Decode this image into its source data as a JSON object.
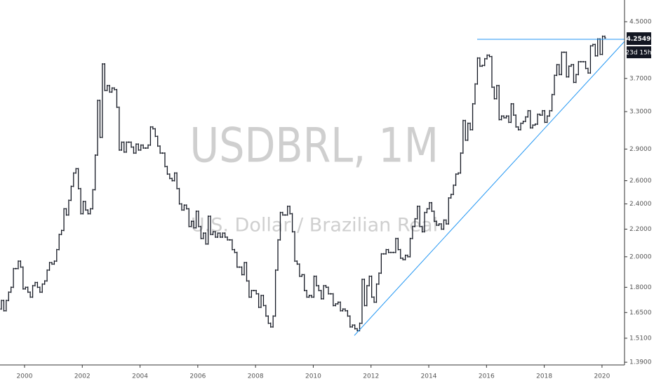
{
  "chart_data": {
    "type": "ohlc",
    "title": "USDBRL, 1M",
    "subtitle": "U.S. Dollar / Brazilian Real",
    "countdown": "23d 15h",
    "log_scale": true,
    "color": "#131722",
    "series": [
      {
        "name": "USDBRL",
        "color": "#131722",
        "open": [
          1.67,
          1.72,
          1.66,
          1.72,
          1.77,
          1.8,
          1.92,
          1.92,
          1.97,
          1.93,
          1.79,
          1.8,
          1.77,
          1.74,
          1.81,
          1.83,
          1.8,
          1.77,
          1.82,
          1.84,
          1.91,
          1.96,
          1.95,
          1.97,
          2.05,
          2.16,
          2.19,
          2.36,
          2.31,
          2.43,
          2.55,
          2.67,
          2.71,
          2.53,
          2.32,
          2.42,
          2.35,
          2.32,
          2.36,
          2.52,
          2.84,
          3.43,
          3.02,
          3.89,
          3.55,
          3.61,
          3.53,
          3.58,
          3.56,
          3.35,
          2.89,
          2.97,
          2.87,
          2.97,
          2.97,
          2.92,
          2.86,
          2.95,
          2.89,
          2.94,
          2.91,
          2.91,
          2.94,
          3.13,
          3.11,
          3.03,
          2.93,
          2.86,
          2.86,
          2.73,
          2.66,
          2.62,
          2.6,
          2.67,
          2.53,
          2.4,
          2.35,
          2.39,
          2.36,
          2.22,
          2.26,
          2.21,
          2.34,
          2.22,
          2.13,
          2.17,
          2.09,
          2.3,
          2.16,
          2.18,
          2.14,
          2.17,
          2.14,
          2.17,
          2.14,
          2.12,
          2.12,
          2.05,
          2.03,
          1.93,
          1.93,
          1.88,
          1.96,
          1.84,
          1.74,
          1.78,
          1.78,
          1.76,
          1.68,
          1.75,
          1.69,
          1.63,
          1.59,
          1.57,
          1.63,
          1.91,
          2.12,
          2.33,
          2.31,
          2.31,
          2.38,
          2.32,
          2.18,
          1.97,
          1.95,
          1.87,
          1.88,
          1.78,
          1.74,
          1.75,
          1.74,
          1.87,
          1.81,
          1.78,
          1.73,
          1.81,
          1.8,
          1.76,
          1.76,
          1.69,
          1.7,
          1.71,
          1.66,
          1.67,
          1.66,
          1.63,
          1.57,
          1.58,
          1.56,
          1.55,
          1.59,
          1.85,
          1.69,
          1.81,
          1.87,
          1.74,
          1.71,
          1.82,
          1.89,
          2.02,
          2.02,
          2.05,
          2.03,
          2.03,
          2.03,
          2.13,
          2.05,
          1.99,
          1.98,
          2.01,
          2.0,
          2.13,
          2.22,
          2.28,
          2.38,
          2.22,
          2.18,
          2.33,
          2.36,
          2.41,
          2.34,
          2.26,
          2.23,
          2.24,
          2.2,
          2.27,
          2.24,
          2.45,
          2.48,
          2.56,
          2.66,
          2.67,
          2.86,
          3.2,
          2.99,
          3.17,
          3.1,
          3.39,
          3.63,
          3.97,
          3.86,
          3.87,
          3.96,
          4.01,
          3.99,
          3.59,
          3.45,
          3.61,
          3.21,
          3.25,
          3.23,
          3.25,
          3.18,
          3.39,
          3.26,
          3.13,
          3.1,
          3.17,
          3.19,
          3.24,
          3.31,
          3.12,
          3.15,
          3.16,
          3.27,
          3.26,
          3.31,
          3.18,
          3.25,
          3.31,
          3.5,
          3.74,
          3.88,
          3.75,
          4.05,
          4.05,
          3.72,
          3.86,
          3.88,
          3.65,
          3.75,
          3.92,
          3.92,
          3.92,
          3.83,
          3.77,
          4.14,
          4.16,
          4.0,
          4.24,
          4.02,
          4.28
        ],
        "close": [
          1.72,
          1.66,
          1.72,
          1.77,
          1.8,
          1.92,
          1.92,
          1.97,
          1.93,
          1.79,
          1.8,
          1.77,
          1.74,
          1.81,
          1.83,
          1.8,
          1.77,
          1.82,
          1.84,
          1.91,
          1.96,
          1.95,
          1.97,
          2.05,
          2.16,
          2.19,
          2.36,
          2.31,
          2.43,
          2.55,
          2.67,
          2.71,
          2.53,
          2.32,
          2.42,
          2.35,
          2.32,
          2.36,
          2.52,
          2.84,
          3.43,
          3.02,
          3.89,
          3.55,
          3.61,
          3.53,
          3.58,
          3.56,
          3.35,
          2.89,
          2.97,
          2.87,
          2.97,
          2.97,
          2.92,
          2.86,
          2.95,
          2.89,
          2.94,
          2.91,
          2.91,
          2.94,
          3.13,
          3.11,
          3.03,
          2.93,
          2.86,
          2.86,
          2.73,
          2.66,
          2.62,
          2.6,
          2.67,
          2.53,
          2.4,
          2.35,
          2.39,
          2.36,
          2.22,
          2.26,
          2.21,
          2.34,
          2.22,
          2.13,
          2.17,
          2.09,
          2.3,
          2.16,
          2.18,
          2.14,
          2.17,
          2.14,
          2.17,
          2.14,
          2.12,
          2.12,
          2.05,
          2.03,
          1.93,
          1.93,
          1.88,
          1.96,
          1.84,
          1.74,
          1.78,
          1.78,
          1.76,
          1.68,
          1.75,
          1.69,
          1.63,
          1.59,
          1.57,
          1.63,
          1.91,
          2.12,
          2.33,
          2.31,
          2.31,
          2.38,
          2.32,
          2.18,
          1.97,
          1.95,
          1.87,
          1.88,
          1.78,
          1.74,
          1.75,
          1.74,
          1.87,
          1.81,
          1.78,
          1.73,
          1.81,
          1.8,
          1.76,
          1.76,
          1.69,
          1.7,
          1.71,
          1.66,
          1.67,
          1.66,
          1.63,
          1.57,
          1.58,
          1.56,
          1.55,
          1.59,
          1.85,
          1.69,
          1.81,
          1.87,
          1.74,
          1.71,
          1.82,
          1.89,
          2.02,
          2.02,
          2.05,
          2.03,
          2.03,
          2.03,
          2.13,
          2.05,
          1.99,
          1.98,
          2.01,
          2.0,
          2.13,
          2.22,
          2.28,
          2.38,
          2.22,
          2.18,
          2.33,
          2.36,
          2.41,
          2.34,
          2.26,
          2.23,
          2.24,
          2.2,
          2.27,
          2.24,
          2.45,
          2.48,
          2.56,
          2.66,
          2.67,
          2.86,
          3.2,
          2.99,
          3.17,
          3.1,
          3.39,
          3.63,
          3.97,
          3.86,
          3.87,
          3.96,
          4.01,
          3.99,
          3.59,
          3.45,
          3.61,
          3.21,
          3.25,
          3.23,
          3.25,
          3.18,
          3.39,
          3.26,
          3.13,
          3.1,
          3.17,
          3.19,
          3.24,
          3.31,
          3.12,
          3.15,
          3.16,
          3.27,
          3.26,
          3.31,
          3.18,
          3.25,
          3.31,
          3.5,
          3.74,
          3.88,
          3.75,
          4.05,
          4.05,
          3.72,
          3.86,
          3.88,
          3.65,
          3.75,
          3.92,
          3.92,
          3.92,
          3.83,
          3.77,
          4.14,
          4.16,
          4.0,
          4.24,
          4.02,
          4.28,
          4.2549
        ]
      }
    ],
    "xlim": [
      1999.15,
      2020.78
    ],
    "xticks": [
      2000,
      2002,
      2004,
      2006,
      2008,
      2010,
      2012,
      2014,
      2016,
      2018,
      2020
    ],
    "ylim": [
      1.377,
      4.85
    ],
    "yticks": [
      {
        "value": 4.5,
        "label": "4.5000"
      },
      {
        "value": 3.7,
        "label": "3.7000"
      },
      {
        "value": 3.3,
        "label": "3.3000"
      },
      {
        "value": 2.9,
        "label": "2.9000"
      },
      {
        "value": 2.6,
        "label": "2.6000"
      },
      {
        "value": 2.4,
        "label": "2.4000"
      },
      {
        "value": 2.2,
        "label": "2.2000"
      },
      {
        "value": 2.0,
        "label": "2.0000"
      },
      {
        "value": 1.8,
        "label": "1.8000"
      },
      {
        "value": 1.65,
        "label": "1.6500"
      },
      {
        "value": 1.51,
        "label": "1.5100"
      },
      {
        "value": 1.39,
        "label": "1.3900"
      }
    ]
  }
}
